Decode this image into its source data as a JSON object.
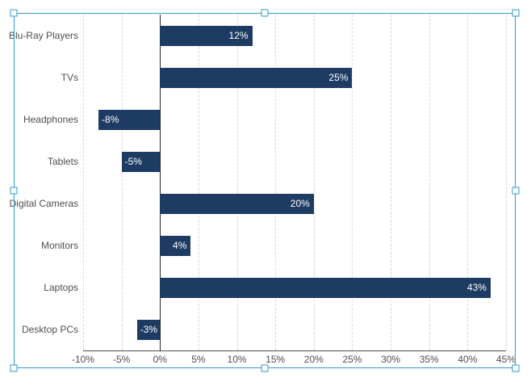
{
  "window": {
    "background": "#ffffff"
  },
  "selection": {
    "border_color": "#2f9ad1",
    "handle_fill": "#ffffff",
    "handles": [
      "top-left",
      "top-center",
      "top-right",
      "middle-left",
      "middle-right",
      "bottom-left",
      "bottom-center",
      "bottom-right"
    ]
  },
  "chart_data": {
    "type": "bar",
    "orientation": "horizontal",
    "title": "",
    "categories": [
      "Blu-Ray Players",
      "TVs",
      "Headphones",
      "Tablets",
      "Digital Cameras",
      "Monitors",
      "Laptops",
      "Desktop PCs"
    ],
    "values": [
      12,
      25,
      -8,
      -5,
      20,
      4,
      43,
      -3
    ],
    "value_labels": [
      "12%",
      "25%",
      "-8%",
      "-5%",
      "20%",
      "4%",
      "43%",
      "-3%"
    ],
    "xlim": [
      -10,
      45
    ],
    "ticks": [
      {
        "value": -10,
        "label": "-10%"
      },
      {
        "value": -5,
        "label": "-5%"
      },
      {
        "value": 0,
        "label": "0%"
      },
      {
        "value": 5,
        "label": "5%"
      },
      {
        "value": 10,
        "label": "10%"
      },
      {
        "value": 15,
        "label": "15%"
      },
      {
        "value": 20,
        "label": "20%"
      },
      {
        "value": 25,
        "label": "25%"
      },
      {
        "value": 30,
        "label": "30%"
      },
      {
        "value": 35,
        "label": "35%"
      },
      {
        "value": 40,
        "label": "40%"
      },
      {
        "value": 45,
        "label": "45%"
      }
    ],
    "grid": true,
    "legend": false,
    "colors": {
      "bar": "#1e3c63",
      "data_label": "#ffffff",
      "axis_text": "#4d4d4d",
      "category_text": "#4f4f4f",
      "gridline": "#d9d9d9",
      "zero_line": "#262626",
      "axis_line": "#4d4d4d"
    }
  }
}
